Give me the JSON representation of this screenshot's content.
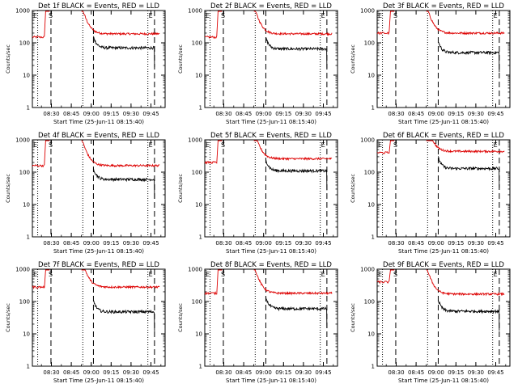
{
  "figure": {
    "panel_titles": [
      "Det 1f BLACK = Events, RED = LLD",
      "Det 2f BLACK = Events, RED = LLD",
      "Det 3f BLACK = Events, RED = LLD",
      "Det 4f BLACK = Events, RED = LLD",
      "Det 5f BLACK = Events, RED = LLD",
      "Det 6f BLACK = Events, RED = LLD",
      "Det 7f BLACK = Events, RED = LLD",
      "Det 8f BLACK = Events, RED = LLD",
      "Det 9f BLACK = Events, RED = LLD"
    ],
    "ylabel": "Counts/sec",
    "xlabel": "Start Time (25-Jun-11 08:15:40)",
    "x_tick_labels": [
      "08:30",
      "08:45",
      "09:00",
      "09:15",
      "09:30",
      "09:45"
    ],
    "y_tick_labels": [
      "1",
      "10",
      "100",
      "1000"
    ],
    "markers": {
      "left_E": "E",
      "left_S": "S",
      "right_E": "E"
    }
  },
  "colors": {
    "events": "#000000",
    "lld": "#dd0000",
    "axes": "#000000",
    "background": "#ffffff"
  },
  "chart_data": {
    "type": "line",
    "panels": 9,
    "layout": "3x3 grid",
    "x_unit": "minutes after 08:15:40",
    "x_range": [
      0,
      100
    ],
    "x_ticks_minutes": [
      14.33,
      29.33,
      44.33,
      59.33,
      74.33,
      89.33
    ],
    "y_scale": "log",
    "ylim": [
      1,
      1000
    ],
    "series_names": [
      "Events",
      "LLD"
    ],
    "dotted_lines_minutes": [
      4,
      38,
      87
    ],
    "dashed_lines_minutes": [
      14,
      46,
      92
    ],
    "events_plateau": [
      70,
      65,
      50,
      60,
      110,
      130,
      48,
      60,
      50
    ],
    "lld_plateau": [
      190,
      190,
      200,
      160,
      260,
      440,
      280,
      180,
      170
    ],
    "pre_gap_level": [
      150,
      150,
      200,
      160,
      200,
      400,
      280,
      180,
      400
    ],
    "data_start_minutes": 46,
    "data_end_minutes": 96
  }
}
